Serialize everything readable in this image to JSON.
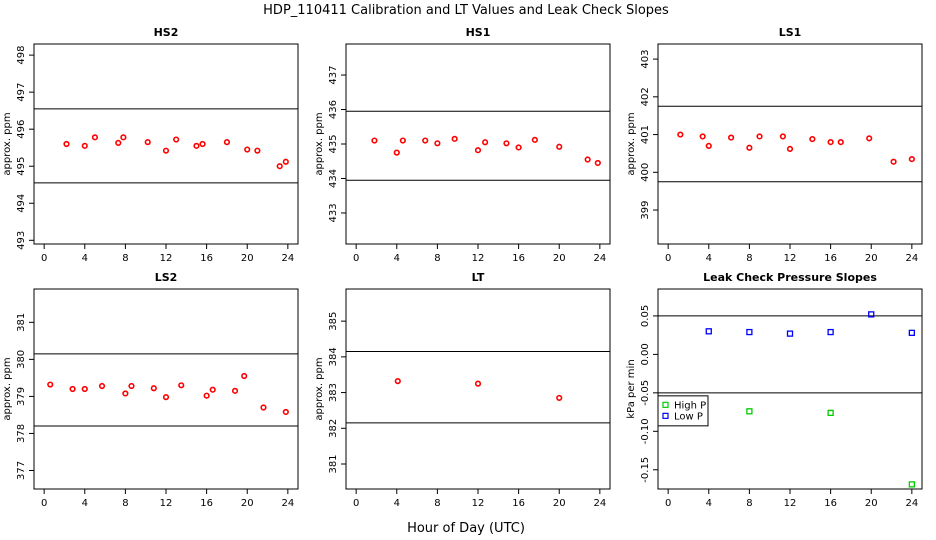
{
  "figure": {
    "title": "HDP_110411  Calibration and LT Values and Leak Check Slopes",
    "xlabel": "Hour of Day (UTC)"
  },
  "colors": {
    "points": "#ff0000",
    "high_p": "#00cc00",
    "low_p": "#0000ff",
    "lines": "#000000",
    "axis": "#000000"
  },
  "chart_data": [
    {
      "type": "scatter",
      "title": "HS2",
      "ylabel": "approx. ppm",
      "xlim": [
        -1,
        25
      ],
      "ylim": [
        492.9,
        498.3
      ],
      "xticks": [
        0,
        4,
        8,
        12,
        16,
        20,
        24
      ],
      "xtick_labels": [
        "0",
        "4",
        "8",
        "12",
        "16",
        "20",
        "24"
      ],
      "yticks": [
        493,
        494,
        495,
        496,
        497,
        498
      ],
      "ytick_labels": [
        "493",
        "494",
        "495",
        "496",
        "497",
        "498"
      ],
      "hlines": [
        496.55,
        494.55
      ],
      "series": [
        {
          "name": "HS2",
          "marker": "circle",
          "color": "#ff0000",
          "x": [
            2.2,
            4.0,
            5.0,
            7.3,
            7.8,
            10.2,
            12.0,
            13.0,
            15.0,
            15.6,
            18.0,
            20.0,
            21.0,
            23.2,
            23.8
          ],
          "y": [
            495.6,
            495.55,
            495.78,
            495.63,
            495.78,
            495.65,
            495.42,
            495.72,
            495.55,
            495.6,
            495.65,
            495.45,
            495.42,
            495.0,
            495.12
          ]
        }
      ]
    },
    {
      "type": "scatter",
      "title": "HS1",
      "ylabel": "approx. ppm",
      "xlim": [
        -1,
        25
      ],
      "ylim": [
        432.1,
        437.9
      ],
      "xticks": [
        0,
        4,
        8,
        12,
        16,
        20,
        24
      ],
      "xtick_labels": [
        "0",
        "4",
        "8",
        "12",
        "16",
        "20",
        "24"
      ],
      "yticks": [
        433,
        434,
        435,
        436,
        437
      ],
      "ytick_labels": [
        "433",
        "434",
        "435",
        "436",
        "437"
      ],
      "hlines": [
        435.95,
        433.95
      ],
      "series": [
        {
          "name": "HS1",
          "marker": "circle",
          "color": "#ff0000",
          "x": [
            1.8,
            4.0,
            4.6,
            6.8,
            8.0,
            9.7,
            12.0,
            12.7,
            14.8,
            16.0,
            17.6,
            20.0,
            22.8,
            23.8
          ],
          "y": [
            435.1,
            434.75,
            435.1,
            435.1,
            435.02,
            435.15,
            434.82,
            435.05,
            435.02,
            434.9,
            435.12,
            434.92,
            434.55,
            434.45
          ]
        }
      ]
    },
    {
      "type": "scatter",
      "title": "LS1",
      "ylabel": "approx. ppm",
      "xlim": [
        -1,
        25
      ],
      "ylim": [
        398.1,
        403.4
      ],
      "xticks": [
        0,
        4,
        8,
        12,
        16,
        20,
        24
      ],
      "xtick_labels": [
        "0",
        "4",
        "8",
        "12",
        "16",
        "20",
        "24"
      ],
      "yticks": [
        399,
        400,
        401,
        402,
        403
      ],
      "ytick_labels": [
        "399",
        "400",
        "401",
        "402",
        "403"
      ],
      "hlines": [
        401.75,
        399.75
      ],
      "series": [
        {
          "name": "LS1",
          "marker": "circle",
          "color": "#ff0000",
          "x": [
            1.2,
            3.4,
            4.0,
            6.2,
            8.0,
            9.0,
            11.3,
            12.0,
            14.2,
            16.0,
            17.0,
            19.8,
            22.2,
            24.0
          ],
          "y": [
            401.0,
            400.95,
            400.7,
            400.92,
            400.65,
            400.95,
            400.95,
            400.62,
            400.88,
            400.8,
            400.8,
            400.9,
            400.28,
            400.35
          ]
        }
      ]
    },
    {
      "type": "scatter",
      "title": "LS2",
      "ylabel": "approx. ppm",
      "xlim": [
        -1,
        25
      ],
      "ylim": [
        376.5,
        381.9
      ],
      "xticks": [
        0,
        4,
        8,
        12,
        16,
        20,
        24
      ],
      "xtick_labels": [
        "0",
        "4",
        "8",
        "12",
        "16",
        "20",
        "24"
      ],
      "yticks": [
        377,
        378,
        379,
        380,
        381
      ],
      "ytick_labels": [
        "377",
        "378",
        "379",
        "380",
        "381"
      ],
      "hlines": [
        380.15,
        378.2
      ],
      "series": [
        {
          "name": "LS2",
          "marker": "circle",
          "color": "#ff0000",
          "x": [
            0.6,
            2.8,
            4.0,
            5.7,
            8.0,
            8.6,
            10.8,
            12.0,
            13.5,
            16.0,
            16.6,
            18.8,
            19.7,
            21.6,
            23.8
          ],
          "y": [
            379.32,
            379.2,
            379.2,
            379.28,
            379.08,
            379.28,
            379.22,
            378.98,
            379.3,
            379.02,
            379.18,
            379.15,
            379.55,
            378.7,
            378.58
          ]
        }
      ]
    },
    {
      "type": "scatter",
      "title": "LT",
      "ylabel": "approx. ppm",
      "xlim": [
        -1,
        25
      ],
      "ylim": [
        380.3,
        385.9
      ],
      "xticks": [
        0,
        4,
        8,
        12,
        16,
        20,
        24
      ],
      "xtick_labels": [
        "0",
        "4",
        "8",
        "12",
        "16",
        "20",
        "24"
      ],
      "yticks": [
        381,
        382,
        383,
        384,
        385
      ],
      "ytick_labels": [
        "381",
        "382",
        "383",
        "384",
        "385"
      ],
      "hlines": [
        384.15,
        382.15
      ],
      "series": [
        {
          "name": "LT",
          "marker": "circle",
          "color": "#ff0000",
          "x": [
            4.1,
            12.0,
            20.0
          ],
          "y": [
            383.32,
            383.25,
            382.85
          ]
        }
      ]
    },
    {
      "type": "scatter",
      "title": "Leak Check Pressure Slopes",
      "ylabel": "kPa per min",
      "xlim": [
        -1,
        25
      ],
      "ylim": [
        -0.175,
        0.085
      ],
      "xticks": [
        0,
        4,
        8,
        12,
        16,
        20,
        24
      ],
      "xtick_labels": [
        "0",
        "4",
        "8",
        "12",
        "16",
        "20",
        "24"
      ],
      "yticks": [
        -0.15,
        -0.1,
        -0.05,
        0.0,
        0.05
      ],
      "ytick_labels": [
        "-0.15",
        "-0.10",
        "-0.05",
        "0.00",
        "0.05"
      ],
      "hlines": [
        0.05,
        -0.05
      ],
      "legend": {
        "position": "center-left",
        "entries": [
          "High P",
          "Low P"
        ]
      },
      "series": [
        {
          "name": "High P",
          "marker": "square",
          "color": "#00cc00",
          "x": [
            8.0,
            16.0,
            24.0
          ],
          "y": [
            -0.074,
            -0.076,
            -0.169
          ]
        },
        {
          "name": "Low P",
          "marker": "square",
          "color": "#0000ff",
          "x": [
            4.0,
            8.0,
            12.0,
            16.0,
            20.0,
            24.0
          ],
          "y": [
            0.03,
            0.029,
            0.027,
            0.029,
            0.052,
            0.028
          ]
        }
      ]
    }
  ]
}
